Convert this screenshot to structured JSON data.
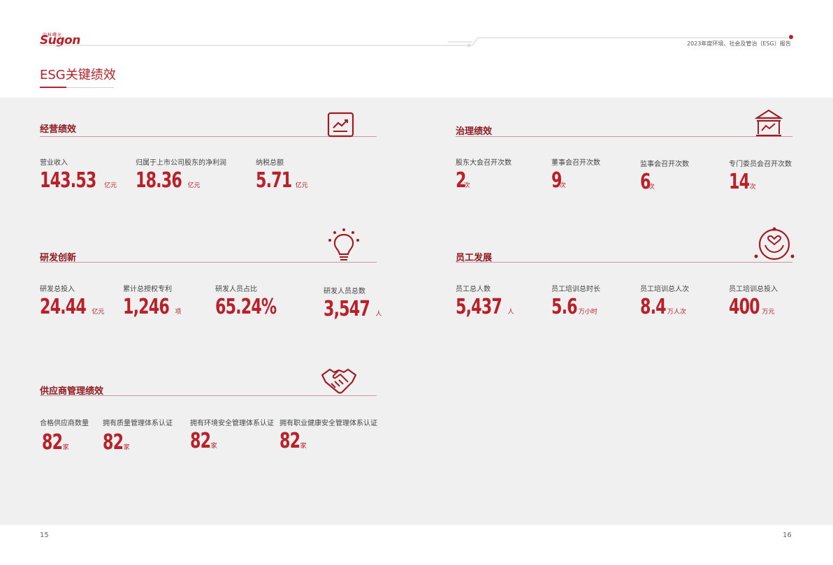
{
  "header": {
    "logo_sub": "中科曙光",
    "logo_main": "Sugon",
    "report_title": "2023年度环境、社会及管治（ESG）报告"
  },
  "page_title": "ESG关键绩效",
  "colors": {
    "accent": "#b8202a",
    "background": "#f0f0f0"
  },
  "sections": {
    "operations": {
      "title": "经营绩效",
      "icon": "trend-chart-icon",
      "metrics": [
        {
          "label": "营业收入",
          "value": "143.53",
          "unit": "亿元"
        },
        {
          "label": "归属于上市公司股东的净利润",
          "value": "18.36",
          "unit": "亿元"
        },
        {
          "label": "纳税总额",
          "value": "5.71",
          "unit": "亿元"
        }
      ]
    },
    "governance": {
      "title": "治理绩效",
      "icon": "building-chart-icon",
      "metrics": [
        {
          "label": "股东大会召开次数",
          "value": "2",
          "unit": "次"
        },
        {
          "label": "董事会召开次数",
          "value": "9",
          "unit": "次"
        },
        {
          "label": "监事会召开次数",
          "value": "6",
          "unit": "次"
        },
        {
          "label": "专门委员会召开次数",
          "value": "14",
          "unit": "次"
        }
      ]
    },
    "innovation": {
      "title": "研发创新",
      "icon": "lightbulb-icon",
      "metrics": [
        {
          "label": "研发总投入",
          "value": "24.44",
          "unit": "亿元"
        },
        {
          "label": "累计总授权专利",
          "value": "1,246",
          "unit": "项"
        },
        {
          "label": "研发人员占比",
          "value": "65.24%",
          "unit": ""
        },
        {
          "label": "研发人员总数",
          "value": "3,547",
          "unit": "人"
        }
      ]
    },
    "employees": {
      "title": "员工发展",
      "icon": "heart-hands-icon",
      "metrics": [
        {
          "label": "员工总人数",
          "value": "5,437",
          "unit": "人"
        },
        {
          "label": "员工培训总时长",
          "value": "5.6",
          "unit": "万小时"
        },
        {
          "label": "员工培训总人次",
          "value": "8.4",
          "unit": "万人次"
        },
        {
          "label": "员工培训总投入",
          "value": "400",
          "unit": "万元"
        }
      ]
    },
    "supply": {
      "title": "供应商管理绩效",
      "icon": "handshake-icon",
      "metrics": [
        {
          "label": "合格供应商数量",
          "value": "82",
          "unit": "家"
        },
        {
          "label": "拥有质量管理体系认证",
          "value": "82",
          "unit": "家"
        },
        {
          "label": "拥有环境安全管理体系认证",
          "value": "82",
          "unit": "家"
        },
        {
          "label": "拥有职业健康安全管理体系认证",
          "value": "82",
          "unit": "家"
        }
      ]
    }
  },
  "footer": {
    "page_left": "15",
    "page_right": "16"
  }
}
